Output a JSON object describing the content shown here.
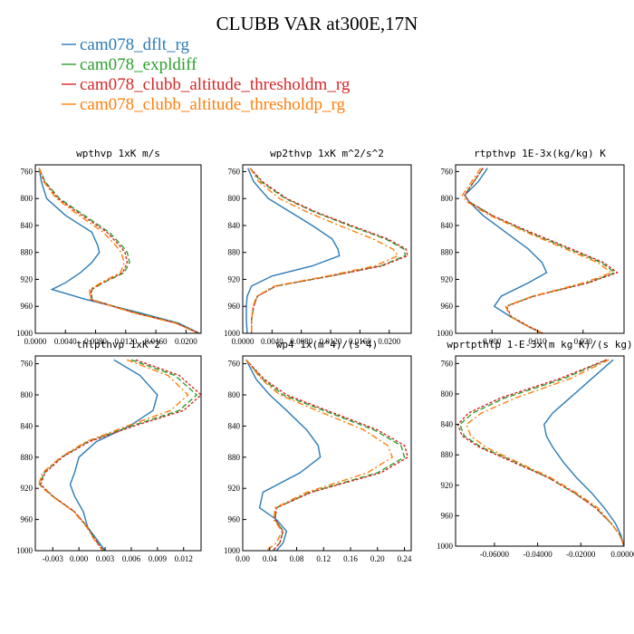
{
  "title": "CLUBB VAR at300E,17N",
  "colors": {
    "series": [
      "#2c7bb6",
      "#2ca02c",
      "#d62728",
      "#ff7f0e"
    ],
    "axis": "#000000"
  },
  "legend": [
    {
      "label": "cam078_dflt_rg",
      "style": "solid"
    },
    {
      "label": "cam078_expldiff",
      "style": "dash"
    },
    {
      "label": "cam078_clubb_altitude_thresholdm_rg",
      "style": "dash"
    },
    {
      "label": "cam078_clubb_altitude_thresholdp_rg",
      "style": "dashdot"
    }
  ],
  "chart_data": [
    {
      "type": "line",
      "title": "wpthvp  1xK m/s",
      "xlim": [
        0.0,
        0.022
      ],
      "ylim": [
        1000,
        750
      ],
      "xticks": [
        0.0,
        0.004,
        0.008,
        0.012,
        0.016,
        0.02
      ],
      "xtick_labels": [
        "0.0000",
        "0.0040",
        "0.0080",
        "0.0120",
        "0.0160",
        "0.0200"
      ],
      "yticks": [
        760,
        800,
        840,
        880,
        920,
        960,
        1000
      ],
      "ytick_labels": [
        "760",
        "800",
        "840",
        "880",
        "920",
        "960",
        "1000"
      ],
      "y": [
        755,
        775,
        800,
        825,
        850,
        870,
        880,
        895,
        910,
        925,
        935,
        950,
        970,
        985,
        1000
      ],
      "series": [
        {
          "values": [
            0.0005,
            0.0008,
            0.0015,
            0.004,
            0.0075,
            0.0083,
            0.0085,
            0.0075,
            0.006,
            0.004,
            0.0022,
            0.0068,
            0.014,
            0.019,
            0.0218
          ]
        },
        {
          "values": [
            0.0005,
            0.0013,
            0.0032,
            0.0065,
            0.0098,
            0.0115,
            0.0122,
            0.0125,
            0.0118,
            0.009,
            0.0075,
            0.0075,
            0.0135,
            0.0188,
            0.0217
          ]
        },
        {
          "values": [
            0.0005,
            0.0012,
            0.003,
            0.0062,
            0.0095,
            0.0112,
            0.0119,
            0.0122,
            0.0116,
            0.0089,
            0.0074,
            0.0074,
            0.0133,
            0.0187,
            0.0217
          ]
        },
        {
          "values": [
            0.0005,
            0.0011,
            0.0028,
            0.0058,
            0.009,
            0.0107,
            0.0114,
            0.0118,
            0.0113,
            0.0087,
            0.0072,
            0.0073,
            0.0132,
            0.0186,
            0.0216
          ]
        }
      ]
    },
    {
      "type": "line",
      "title": "wp2thvp  1xK m^2/s^2",
      "xlim": [
        0.0,
        0.023
      ],
      "ylim": [
        1000,
        750
      ],
      "xticks": [
        0.0,
        0.004,
        0.008,
        0.012,
        0.016,
        0.02
      ],
      "xtick_labels": [
        "0.0000",
        "0.0040",
        "0.0080",
        "0.0120",
        "0.0160",
        "0.0200"
      ],
      "yticks": [
        760,
        800,
        840,
        880,
        920,
        960,
        1000
      ],
      "ytick_labels": [
        "760",
        "800",
        "840",
        "880",
        "920",
        "960",
        "1000"
      ],
      "y": [
        755,
        775,
        800,
        820,
        840,
        860,
        875,
        885,
        900,
        915,
        930,
        945,
        960,
        980,
        1000
      ],
      "series": [
        {
          "values": [
            0.0007,
            0.0015,
            0.0035,
            0.0065,
            0.0095,
            0.0122,
            0.013,
            0.0132,
            0.0095,
            0.004,
            0.0012,
            0.0006,
            0.0005,
            0.0005,
            0.0006
          ]
        },
        {
          "values": [
            0.001,
            0.0025,
            0.0058,
            0.0098,
            0.0145,
            0.0195,
            0.022,
            0.0222,
            0.0188,
            0.012,
            0.0045,
            0.002,
            0.0015,
            0.0012,
            0.0012
          ]
        },
        {
          "values": [
            0.001,
            0.0027,
            0.006,
            0.01,
            0.0148,
            0.0198,
            0.0223,
            0.0225,
            0.019,
            0.012,
            0.0045,
            0.002,
            0.0015,
            0.0012,
            0.0012
          ]
        },
        {
          "values": [
            0.001,
            0.0022,
            0.005,
            0.0088,
            0.0132,
            0.0178,
            0.0205,
            0.0212,
            0.018,
            0.0115,
            0.0043,
            0.0019,
            0.0014,
            0.0012,
            0.0012
          ]
        }
      ]
    },
    {
      "type": "line",
      "title": "rtpthvp  1E-3x(kg/kg) K",
      "xlim": [
        -0.008,
        0.029
      ],
      "ylim": [
        1000,
        750
      ],
      "xticks": [
        0.0,
        0.01,
        0.02
      ],
      "xtick_labels": [
        "0.000",
        "0.010",
        "0.020"
      ],
      "yticks": [
        760,
        800,
        840,
        880,
        920,
        960,
        1000
      ],
      "ytick_labels": [
        "760",
        "800",
        "840",
        "880",
        "920",
        "960",
        "1000"
      ],
      "y": [
        755,
        775,
        795,
        805,
        825,
        850,
        875,
        895,
        910,
        925,
        945,
        960,
        975,
        990,
        1000
      ],
      "series": [
        {
          "values": [
            -0.001,
            -0.003,
            -0.006,
            -0.005,
            -0.002,
            0.003,
            0.008,
            0.011,
            0.012,
            0.008,
            0.002,
            0.0005,
            0.004,
            0.008,
            0.011
          ]
        },
        {
          "values": [
            -0.002,
            -0.004,
            -0.006,
            -0.005,
            0.0,
            0.008,
            0.017,
            0.024,
            0.027,
            0.021,
            0.009,
            0.003,
            0.004,
            0.008,
            0.011
          ]
        },
        {
          "values": [
            -0.002,
            -0.004,
            -0.006,
            -0.005,
            0.0,
            0.0085,
            0.0175,
            0.0245,
            0.0275,
            0.0212,
            0.0092,
            0.0032,
            0.0042,
            0.0082,
            0.0112
          ]
        },
        {
          "values": [
            -0.0025,
            -0.0045,
            -0.0065,
            -0.0055,
            -0.0005,
            0.0075,
            0.0162,
            0.0232,
            0.0262,
            0.0202,
            0.0088,
            0.003,
            0.004,
            0.008,
            0.011
          ]
        }
      ]
    },
    {
      "type": "line",
      "title": "thlpthvp  1xK^2",
      "xlim": [
        -0.005,
        0.014
      ],
      "ylim": [
        1000,
        750
      ],
      "xticks": [
        -0.003,
        0.0,
        0.003,
        0.006,
        0.009,
        0.012
      ],
      "xtick_labels": [
        "-0.003",
        "0.000",
        "0.003",
        "0.006",
        "0.009",
        "0.012"
      ],
      "yticks": [
        760,
        800,
        840,
        880,
        920,
        960,
        1000
      ],
      "ytick_labels": [
        "760",
        "800",
        "840",
        "880",
        "920",
        "960",
        "1000"
      ],
      "y": [
        755,
        775,
        800,
        820,
        840,
        860,
        880,
        900,
        915,
        930,
        950,
        970,
        985,
        1000
      ],
      "series": [
        {
          "values": [
            0.004,
            0.007,
            0.009,
            0.0085,
            0.0058,
            0.002,
            0.0,
            -0.0005,
            -0.001,
            -0.0005,
            0.0005,
            0.001,
            0.002,
            0.003
          ]
        },
        {
          "values": [
            0.006,
            0.011,
            0.0135,
            0.0115,
            0.006,
            0.001,
            -0.002,
            -0.004,
            -0.0045,
            -0.003,
            -0.0005,
            0.001,
            0.0018,
            0.0028
          ]
        },
        {
          "values": [
            0.0065,
            0.0115,
            0.014,
            0.012,
            0.0063,
            0.0012,
            -0.0019,
            -0.0039,
            -0.0044,
            -0.003,
            -0.0005,
            0.001,
            0.0018,
            0.0028
          ]
        },
        {
          "values": [
            0.0055,
            0.0102,
            0.0125,
            0.0105,
            0.0055,
            0.0008,
            -0.0021,
            -0.0042,
            -0.0046,
            -0.0031,
            -0.0006,
            0.0009,
            0.0017,
            0.0027
          ]
        }
      ]
    },
    {
      "type": "line",
      "title": "wp4  1x(m^4)/(s^4)",
      "xlim": [
        0.0,
        0.25
      ],
      "ylim": [
        1000,
        750
      ],
      "xticks": [
        0.0,
        0.04,
        0.08,
        0.12,
        0.16,
        0.2,
        0.24
      ],
      "xtick_labels": [
        "0.00",
        "0.04",
        "0.08",
        "0.12",
        "0.16",
        "0.20",
        "0.24"
      ],
      "yticks": [
        760,
        800,
        840,
        880,
        920,
        960,
        1000
      ],
      "ytick_labels": [
        "760",
        "800",
        "840",
        "880",
        "920",
        "960",
        "1000"
      ],
      "y": [
        755,
        780,
        800,
        820,
        845,
        865,
        880,
        900,
        925,
        945,
        960,
        975,
        990,
        1000
      ],
      "series": [
        {
          "values": [
            0.005,
            0.02,
            0.04,
            0.065,
            0.095,
            0.112,
            0.115,
            0.085,
            0.03,
            0.025,
            0.05,
            0.065,
            0.06,
            0.05
          ]
        },
        {
          "values": [
            0.005,
            0.03,
            0.06,
            0.12,
            0.195,
            0.235,
            0.24,
            0.2,
            0.1,
            0.05,
            0.048,
            0.06,
            0.055,
            0.045
          ]
        },
        {
          "values": [
            0.005,
            0.032,
            0.065,
            0.125,
            0.2,
            0.24,
            0.245,
            0.205,
            0.102,
            0.05,
            0.048,
            0.06,
            0.055,
            0.045
          ]
        },
        {
          "values": [
            0.005,
            0.028,
            0.055,
            0.11,
            0.18,
            0.215,
            0.222,
            0.185,
            0.095,
            0.048,
            0.046,
            0.058,
            0.05,
            0.035
          ]
        }
      ]
    },
    {
      "type": "line",
      "title": "wprtpthlp  1-E-3x(m kg K)/(s kg)",
      "xlim": [
        -0.078,
        0.0
      ],
      "ylim": [
        1000,
        750
      ],
      "xticks": [
        -0.06,
        -0.04,
        -0.02,
        0.0
      ],
      "xtick_labels": [
        "-0.06000",
        "-0.04000",
        "-0.02000",
        "0.00000"
      ],
      "yticks": [
        760,
        800,
        840,
        880,
        920,
        960,
        1000
      ],
      "ytick_labels": [
        "760",
        "800",
        "840",
        "880",
        "920",
        "960",
        "1000"
      ],
      "y": [
        755,
        780,
        805,
        825,
        840,
        855,
        870,
        890,
        910,
        930,
        950,
        970,
        985,
        1000
      ],
      "series": [
        {
          "values": [
            -0.005,
            -0.015,
            -0.025,
            -0.033,
            -0.037,
            -0.036,
            -0.033,
            -0.028,
            -0.022,
            -0.015,
            -0.009,
            -0.004,
            -0.0015,
            0.0
          ]
        },
        {
          "values": [
            -0.008,
            -0.028,
            -0.055,
            -0.07,
            -0.076,
            -0.074,
            -0.066,
            -0.05,
            -0.035,
            -0.023,
            -0.013,
            -0.006,
            -0.002,
            0.0
          ]
        },
        {
          "values": [
            -0.008,
            -0.03,
            -0.057,
            -0.072,
            -0.077,
            -0.075,
            -0.067,
            -0.051,
            -0.035,
            -0.023,
            -0.013,
            -0.006,
            -0.002,
            0.0
          ]
        },
        {
          "values": [
            -0.007,
            -0.025,
            -0.05,
            -0.066,
            -0.073,
            -0.071,
            -0.064,
            -0.049,
            -0.034,
            -0.022,
            -0.012,
            -0.006,
            -0.002,
            0.0
          ]
        }
      ]
    }
  ]
}
